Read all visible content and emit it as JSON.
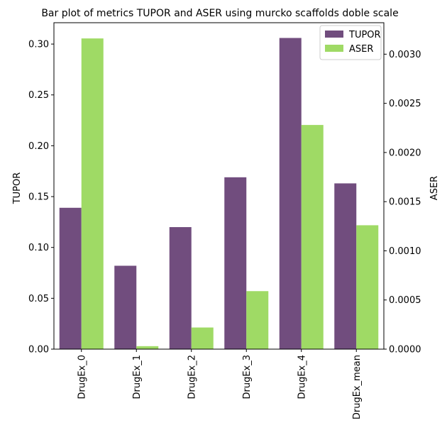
{
  "chart_data": {
    "type": "bar",
    "title": "Bar plot of metrics TUPOR and ASER using murcko scaffolds doble scale",
    "xlabel": "",
    "categories": [
      "DrugEx_0",
      "DrugEx_1",
      "DrugEx_2",
      "DrugEx_3",
      "DrugEx_4",
      "DrugEx_mean"
    ],
    "y_left": {
      "label": "TUPOR",
      "ylim": [
        0,
        0.321
      ],
      "ticks": [
        0.0,
        0.05,
        0.1,
        0.15,
        0.2,
        0.25,
        0.3
      ],
      "tick_labels": [
        "0.00",
        "0.05",
        "0.10",
        "0.15",
        "0.20",
        "0.25",
        "0.30"
      ]
    },
    "y_right": {
      "label": "ASER",
      "ylim": [
        0,
        0.00332
      ],
      "ticks": [
        0.0,
        0.0005,
        0.001,
        0.0015,
        0.002,
        0.0025,
        0.003
      ],
      "tick_labels": [
        "0.0000",
        "0.0005",
        "0.0010",
        "0.0015",
        "0.0020",
        "0.0025",
        "0.0030"
      ]
    },
    "series": [
      {
        "name": "TUPOR",
        "axis": "left",
        "color": "#714d7e",
        "values": [
          0.139,
          0.082,
          0.12,
          0.169,
          0.306,
          0.163
        ]
      },
      {
        "name": "ASER",
        "axis": "right",
        "color": "#9fda65",
        "values": [
          0.00316,
          3e-05,
          0.00022,
          0.00059,
          0.00228,
          0.00126
        ]
      }
    ],
    "legend": {
      "placement": "upper-right"
    },
    "grid": false
  }
}
